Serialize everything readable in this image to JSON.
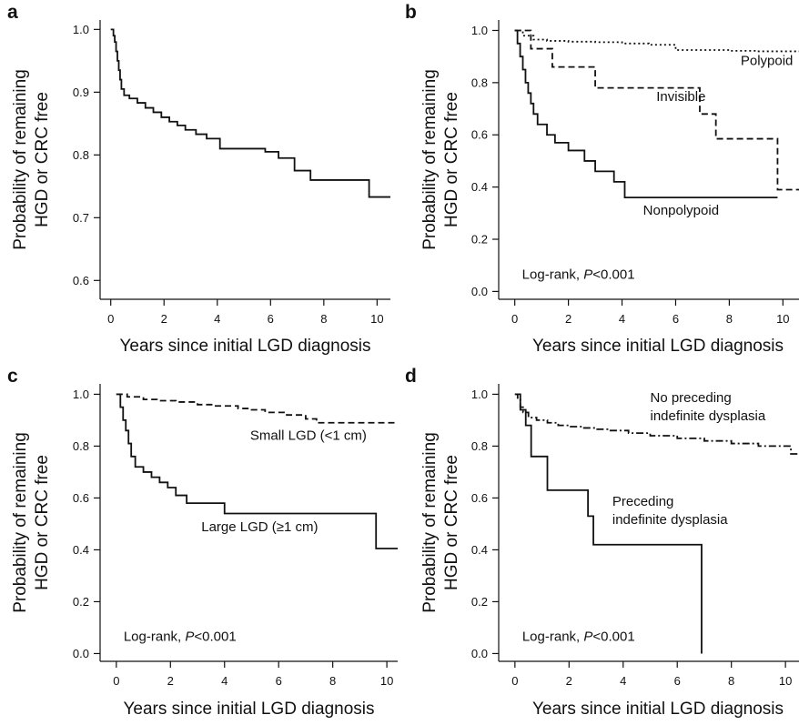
{
  "panels": [
    {
      "letter": "a",
      "xlabel": "Years since initial LGD diagnosis",
      "ylabel_line1": "Probability of remaining",
      "ylabel_line2": "HGD or CRC free",
      "xlim": [
        -0.4,
        10.5
      ],
      "ylim": [
        0.57,
        1.015
      ],
      "xticks": [
        0,
        2,
        4,
        6,
        8,
        10
      ],
      "yticks": [
        0.6,
        0.7,
        0.8,
        0.9,
        1.0
      ],
      "annotations": []
    },
    {
      "letter": "b",
      "xlabel": "Years since initial LGD diagnosis",
      "ylabel_line1": "Probability of remaining",
      "ylabel_line2": "HGD or CRC free",
      "xlim": [
        -0.6,
        10.6
      ],
      "ylim": [
        -0.03,
        1.04
      ],
      "xticks": [
        0,
        2,
        4,
        6,
        8,
        10
      ],
      "yticks": [
        0.0,
        0.2,
        0.4,
        0.6,
        0.8,
        1.0
      ],
      "annotations": [
        {
          "name": "label-polypoid",
          "text": "Polypoid",
          "x": 9.4,
          "y": 0.867,
          "anchor": "middle"
        },
        {
          "name": "label-invisible",
          "text": "Invisible",
          "x": 6.2,
          "y": 0.73,
          "anchor": "middle"
        },
        {
          "name": "label-nonpolypoid",
          "text": "Nonpolypoid",
          "x": 6.2,
          "y": 0.295,
          "anchor": "middle"
        }
      ],
      "logrank": {
        "prefix": "Log-rank, ",
        "p": "P",
        "rest": "<0.001",
        "x": 0.0,
        "y": 0.02
      }
    },
    {
      "letter": "c",
      "xlabel": "Years since initial LGD diagnosis",
      "ylabel_line1": "Probability of remaining",
      "ylabel_line2": "HGD or CRC free",
      "xlim": [
        -0.6,
        10.4
      ],
      "ylim": [
        -0.03,
        1.04
      ],
      "xticks": [
        0,
        2,
        4,
        6,
        8,
        10
      ],
      "yticks": [
        0.0,
        0.2,
        0.4,
        0.6,
        0.8,
        1.0
      ],
      "annotations": [
        {
          "name": "label-small-lgd",
          "text": "Small LGD (<1 cm)",
          "x": 7.1,
          "y": 0.825,
          "anchor": "middle"
        },
        {
          "name": "label-large-lgd",
          "text": "Large LGD (≥1 cm)",
          "x": 5.3,
          "y": 0.472,
          "anchor": "middle"
        }
      ],
      "logrank": {
        "prefix": "Log-rank, ",
        "p": "P",
        "rest": "<0.001",
        "x": 0.0,
        "y": 0.02
      }
    },
    {
      "letter": "d",
      "xlabel": "Years since initial LGD diagnosis",
      "ylabel_line1": "Probability of remaining",
      "ylabel_line2": "HGD or CRC free",
      "xlim": [
        -0.6,
        10.5
      ],
      "ylim": [
        -0.03,
        1.04
      ],
      "xticks": [
        0,
        2,
        4,
        6,
        8,
        10
      ],
      "yticks": [
        0.0,
        0.2,
        0.4,
        0.6,
        0.8,
        1.0
      ],
      "annotations": [
        {
          "name": "label-no-preceding-1",
          "text": "No preceding",
          "x": 5.0,
          "y": 0.97,
          "anchor": "start"
        },
        {
          "name": "label-no-preceding-2",
          "text": "indefinite dysplasia",
          "x": 5.0,
          "y": 0.9,
          "anchor": "start"
        },
        {
          "name": "label-preceding-1",
          "text": "Preceding",
          "x": 3.6,
          "y": 0.57,
          "anchor": "start"
        },
        {
          "name": "label-preceding-2",
          "text": "indefinite dysplasia",
          "x": 3.6,
          "y": 0.5,
          "anchor": "start"
        }
      ],
      "logrank": {
        "prefix": "Log-rank, ",
        "p": "P",
        "rest": "<0.001",
        "x": 0.0,
        "y": 0.02
      }
    }
  ],
  "chart_data": [
    {
      "panel": "a",
      "type": "line",
      "subtype": "kaplan-meier step",
      "xlabel": "Years since initial LGD diagnosis",
      "ylabel": "Probability of remaining HGD or CRC free",
      "xlim": [
        0,
        10.5
      ],
      "ylim": [
        0.6,
        1.0
      ],
      "series": [
        {
          "style": "solid",
          "x": [
            0,
            0.1,
            0.15,
            0.2,
            0.25,
            0.3,
            0.35,
            0.4,
            0.5,
            0.7,
            1.0,
            1.3,
            1.6,
            1.9,
            2.2,
            2.5,
            2.8,
            3.2,
            3.6,
            4.1,
            5.8,
            6.3,
            6.9,
            7.5,
            9.7,
            10.5
          ],
          "y": [
            1.0,
            0.99,
            0.98,
            0.965,
            0.95,
            0.935,
            0.92,
            0.905,
            0.895,
            0.89,
            0.883,
            0.875,
            0.868,
            0.86,
            0.853,
            0.847,
            0.84,
            0.833,
            0.826,
            0.81,
            0.805,
            0.795,
            0.775,
            0.76,
            0.733,
            0.733
          ]
        }
      ]
    },
    {
      "panel": "b",
      "type": "line",
      "subtype": "kaplan-meier step",
      "xlabel": "Years since initial LGD diagnosis",
      "ylabel": "Probability of remaining HGD or CRC free",
      "xlim": [
        0,
        10.6
      ],
      "ylim": [
        0.0,
        1.0
      ],
      "series": [
        {
          "name": "Polypoid",
          "style": "dotted",
          "x": [
            0,
            0.3,
            0.7,
            1.2,
            2.0,
            3.0,
            4.0,
            5.0,
            6.0,
            8.0,
            9.0,
            10.6
          ],
          "y": [
            1.0,
            0.98,
            0.965,
            0.96,
            0.957,
            0.955,
            0.95,
            0.945,
            0.925,
            0.922,
            0.92,
            0.92
          ]
        },
        {
          "name": "Invisible",
          "style": "dashed",
          "x": [
            0,
            0.6,
            1.4,
            3.0,
            6.9,
            7.5,
            9.8,
            10.6
          ],
          "y": [
            1.0,
            0.93,
            0.86,
            0.78,
            0.68,
            0.585,
            0.39,
            0.39
          ]
        },
        {
          "name": "Nonpolypoid",
          "style": "solid",
          "x": [
            0,
            0.1,
            0.2,
            0.3,
            0.4,
            0.5,
            0.6,
            0.7,
            0.85,
            1.2,
            1.5,
            2.0,
            2.6,
            3.0,
            3.7,
            4.1,
            9.8
          ],
          "y": [
            1.0,
            0.95,
            0.9,
            0.85,
            0.8,
            0.76,
            0.72,
            0.68,
            0.64,
            0.6,
            0.57,
            0.54,
            0.5,
            0.46,
            0.42,
            0.36,
            0.36
          ]
        }
      ]
    },
    {
      "panel": "c",
      "type": "line",
      "subtype": "kaplan-meier step",
      "xlabel": "Years since initial LGD diagnosis",
      "ylabel": "Probability of remaining HGD or CRC free",
      "xlim": [
        0,
        10.4
      ],
      "ylim": [
        0.0,
        1.0
      ],
      "series": [
        {
          "name": "Small LGD (<1 cm)",
          "style": "dashed",
          "x": [
            0,
            0.4,
            1.0,
            1.5,
            2.2,
            3.0,
            3.6,
            4.5,
            5.0,
            5.5,
            6.3,
            7.0,
            7.4,
            10.4
          ],
          "y": [
            1.0,
            0.99,
            0.98,
            0.975,
            0.97,
            0.96,
            0.955,
            0.945,
            0.94,
            0.93,
            0.92,
            0.905,
            0.89,
            0.89
          ]
        },
        {
          "name": "Large LGD (≥1 cm)",
          "style": "solid",
          "x": [
            0,
            0.15,
            0.25,
            0.35,
            0.45,
            0.55,
            0.7,
            1.0,
            1.3,
            1.6,
            1.9,
            2.2,
            2.6,
            4.0,
            9.6,
            10.4
          ],
          "y": [
            1.0,
            0.95,
            0.9,
            0.86,
            0.81,
            0.76,
            0.72,
            0.7,
            0.68,
            0.66,
            0.64,
            0.61,
            0.58,
            0.54,
            0.405,
            0.405
          ]
        }
      ]
    },
    {
      "panel": "d",
      "type": "line",
      "subtype": "kaplan-meier step",
      "xlabel": "Years since initial LGD diagnosis",
      "ylabel": "Probability of remaining HGD or CRC free",
      "xlim": [
        0,
        10.5
      ],
      "ylim": [
        0.0,
        1.0
      ],
      "series": [
        {
          "name": "No preceding indefinite dysplasia",
          "style": "dash-dot",
          "x": [
            0,
            0.1,
            0.2,
            0.3,
            0.5,
            0.8,
            1.2,
            1.6,
            2.0,
            2.5,
            3.0,
            3.5,
            4.2,
            5.0,
            6.0,
            7.0,
            8.0,
            9.0,
            10.2,
            10.5
          ],
          "y": [
            1.0,
            0.98,
            0.95,
            0.93,
            0.91,
            0.9,
            0.89,
            0.88,
            0.875,
            0.87,
            0.865,
            0.86,
            0.85,
            0.84,
            0.83,
            0.82,
            0.81,
            0.8,
            0.77,
            0.77
          ]
        },
        {
          "name": "Preceding indefinite dysplasia",
          "style": "solid",
          "x": [
            0,
            0.2,
            0.4,
            0.6,
            1.2,
            2.7,
            2.9,
            6.9,
            6.9
          ],
          "y": [
            1.0,
            0.94,
            0.88,
            0.76,
            0.63,
            0.53,
            0.42,
            0.42,
            0.0
          ]
        }
      ]
    }
  ]
}
